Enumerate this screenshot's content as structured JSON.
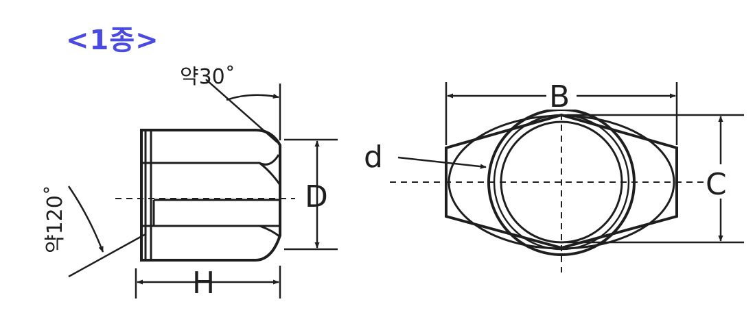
{
  "title": "<1종>",
  "colors": {
    "title": "#4a4ae0",
    "line": "#1e1e1e",
    "fill": "#ffffff"
  },
  "side_view": {
    "angle_top_label": "약30˚",
    "angle_chamfer_label": "약120˚",
    "height_label": "H",
    "diameter_label": "D"
  },
  "front_view": {
    "width_across_flats_label": "B",
    "width_across_corners_label": "C",
    "thread_label": "d"
  }
}
